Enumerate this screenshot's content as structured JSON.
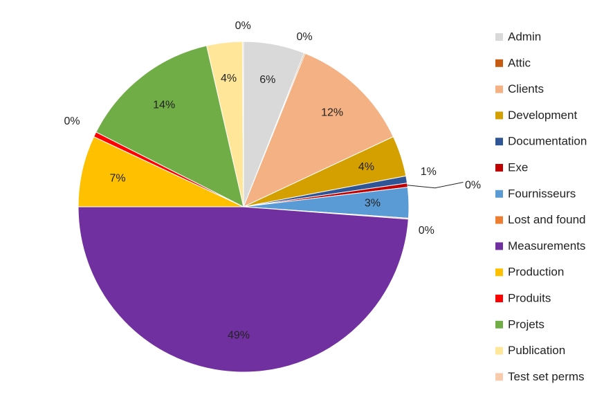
{
  "chart_data": {
    "type": "pie",
    "title": "",
    "legend_placement": "right",
    "slices": [
      {
        "name": "Admin",
        "value": 6,
        "label": "6%",
        "color": "#d9d9d9"
      },
      {
        "name": "Attic",
        "value": 0.1,
        "label": "0%",
        "color": "#c55a11"
      },
      {
        "name": "Clients",
        "value": 12,
        "label": "12%",
        "color": "#f4b183"
      },
      {
        "name": "Development",
        "value": 4,
        "label": "4%",
        "color": "#d4a000"
      },
      {
        "name": "Documentation",
        "value": 0.7,
        "label": "1%",
        "color": "#2f5597"
      },
      {
        "name": "Exe",
        "value": 0.4,
        "label": "0%",
        "color": "#c00000"
      },
      {
        "name": "Fournisseurs",
        "value": 3,
        "label": "3%",
        "color": "#5b9bd5"
      },
      {
        "name": "Lost and found",
        "value": 0.1,
        "label": "0%",
        "color": "#ed7d31"
      },
      {
        "name": "Measurements",
        "value": 49,
        "label": "49%",
        "color": "#7030a0"
      },
      {
        "name": "Production",
        "value": 7,
        "label": "7%",
        "color": "#ffc000"
      },
      {
        "name": "Produits",
        "value": 0.5,
        "label": "0%",
        "color": "#ff0000"
      },
      {
        "name": "Projets",
        "value": 14,
        "label": "14%",
        "color": "#70ad47"
      },
      {
        "name": "Publication",
        "value": 3.5,
        "label": "4%",
        "color": "#ffe699"
      },
      {
        "name": "Test set perms",
        "value": 0.1,
        "label": "0%",
        "color": "#f8cbad"
      }
    ]
  }
}
